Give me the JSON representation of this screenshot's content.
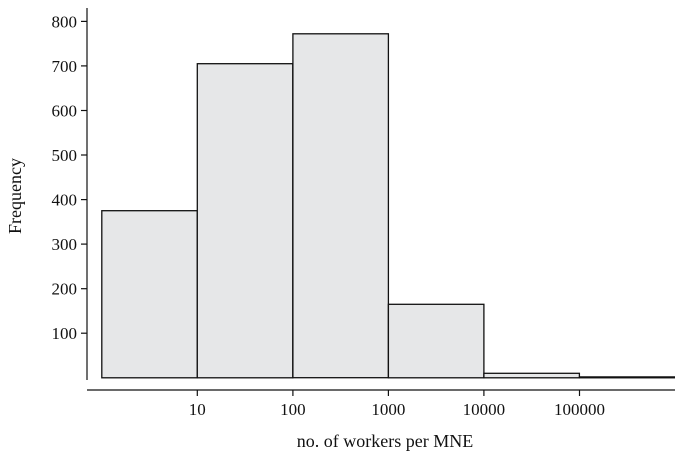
{
  "chart_data": {
    "type": "bar",
    "title": "",
    "xlabel": "no. of workers per MNE",
    "ylabel": "Frequency",
    "x_scale": "log10",
    "bins": [
      {
        "from": 1,
        "to": 10,
        "value": 375
      },
      {
        "from": 10,
        "to": 100,
        "value": 705
      },
      {
        "from": 100,
        "to": 1000,
        "value": 772
      },
      {
        "from": 1000,
        "to": 10000,
        "value": 165
      },
      {
        "from": 10000,
        "to": 100000,
        "value": 10
      },
      {
        "from": 100000,
        "to": 1000000,
        "value": 2
      }
    ],
    "x_ticks": [
      {
        "value": 10,
        "label": "10"
      },
      {
        "value": 100,
        "label": "100"
      },
      {
        "value": 1000,
        "label": "1000"
      },
      {
        "value": 10000,
        "label": "10000"
      },
      {
        "value": 100000,
        "label": "100000"
      }
    ],
    "y_ticks": [
      {
        "value": 100,
        "label": "100"
      },
      {
        "value": 200,
        "label": "200"
      },
      {
        "value": 300,
        "label": "300"
      },
      {
        "value": 400,
        "label": "400"
      },
      {
        "value": 500,
        "label": "500"
      },
      {
        "value": 600,
        "label": "600"
      },
      {
        "value": 700,
        "label": "700"
      },
      {
        "value": 800,
        "label": "800"
      }
    ],
    "xlim": [
      0.7,
      1000000
    ],
    "ylim": [
      -5,
      830
    ],
    "grid": false,
    "bar_color": "#e6e7e8",
    "edge_color": "#111111"
  }
}
